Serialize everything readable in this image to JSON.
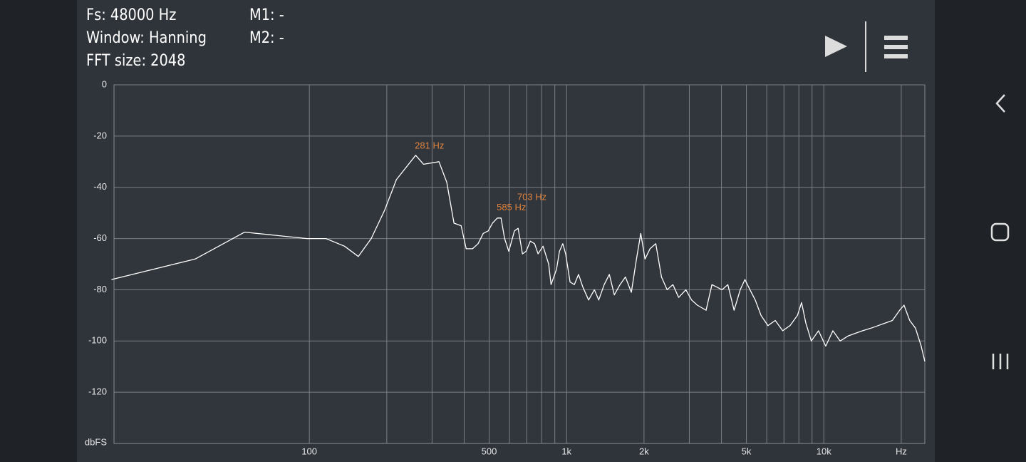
{
  "header": {
    "fs": "Fs: 48000 Hz",
    "window": "Window: Hanning",
    "fft_size": "FFT size: 2048",
    "m1": "M1: -",
    "m2": "M2: -"
  },
  "chart_data": {
    "type": "line",
    "xscale": "log",
    "grid": true,
    "color": "#ffffff",
    "ylabel": "dbFS",
    "xlim": [
      17.4,
      24700
    ],
    "ylim": [
      -140,
      0
    ],
    "yticks": [
      0,
      -20,
      -40,
      -60,
      -80,
      -100,
      -120
    ],
    "xticks": [
      100,
      500,
      {
        "value": 1000,
        "label": "1k"
      },
      {
        "value": 2000,
        "label": "2k"
      },
      {
        "value": 5000,
        "label": "5k"
      },
      {
        "value": 10000,
        "label": "10k"
      },
      {
        "value": 20000,
        "label": "Hz"
      }
    ],
    "xgrid": [
      100,
      200,
      300,
      400,
      500,
      600,
      700,
      800,
      900,
      1000,
      2000,
      3000,
      4000,
      5000,
      6000,
      7000,
      8000,
      9000,
      10000,
      20000
    ],
    "x": [
      17,
      36,
      56,
      98,
      116,
      137,
      155,
      174,
      196,
      218,
      259,
      278,
      319,
      342,
      365,
      389,
      407,
      431,
      453,
      474,
      496,
      515,
      538,
      556,
      574,
      596,
      627,
      648,
      674,
      696,
      723,
      751,
      775,
      810,
      852,
      870,
      914,
      938,
      967,
      992,
      1032,
      1072,
      1113,
      1157,
      1218,
      1282,
      1333,
      1400,
      1466,
      1533,
      1613,
      1693,
      1785,
      1869,
      1942,
      2018,
      2110,
      2222,
      2338,
      2460,
      2589,
      2727,
      2908,
      3062,
      3223,
      3485,
      3673,
      3843,
      4021,
      4235,
      4478,
      4732,
      4935,
      5164,
      5415,
      5700,
      6063,
      6477,
      6919,
      7390,
      7896,
      8193,
      8513,
      8940,
      9536,
      10170,
      10850,
      11570,
      12450,
      13260,
      14150,
      15250,
      16270,
      17330,
      18480,
      19710,
      20500,
      21570,
      22720,
      23910,
      24700
    ],
    "values": [
      -76,
      -68,
      -57.5,
      -60,
      -60,
      -63,
      -67,
      -60,
      -49,
      -37,
      -27.5,
      -31,
      -30,
      -38,
      -54,
      -55,
      -64,
      -64,
      -62,
      -58,
      -57,
      -54,
      -52,
      -52,
      -60,
      -65,
      -57,
      -56,
      -66,
      -65,
      -61,
      -62,
      -66,
      -63,
      -70,
      -78,
      -72,
      -65,
      -62,
      -66,
      -77,
      -78,
      -74,
      -79,
      -84,
      -80,
      -84,
      -78,
      -74,
      -82,
      -78,
      -75,
      -81,
      -68,
      -58,
      -68,
      -64,
      -62,
      -75,
      -80,
      -78,
      -83,
      -80,
      -84,
      -86,
      -88,
      -78,
      -79,
      -80,
      -78,
      -88,
      -80,
      -76,
      -80,
      -84,
      -90,
      -94,
      -92,
      -96,
      -94,
      -90,
      -85,
      -93,
      -100,
      -96,
      -102,
      -96,
      -100,
      -98,
      -97,
      -96,
      -95,
      -94,
      -93,
      -92,
      -88,
      -86,
      -92,
      -95,
      -102,
      -108
    ],
    "markers": [
      {
        "label": "281 Hz",
        "x": 281,
        "y": -24
      },
      {
        "label": "585 Hz",
        "x": 585,
        "y": -48
      },
      {
        "label": "703 Hz",
        "x": 703,
        "y": -44
      }
    ]
  }
}
